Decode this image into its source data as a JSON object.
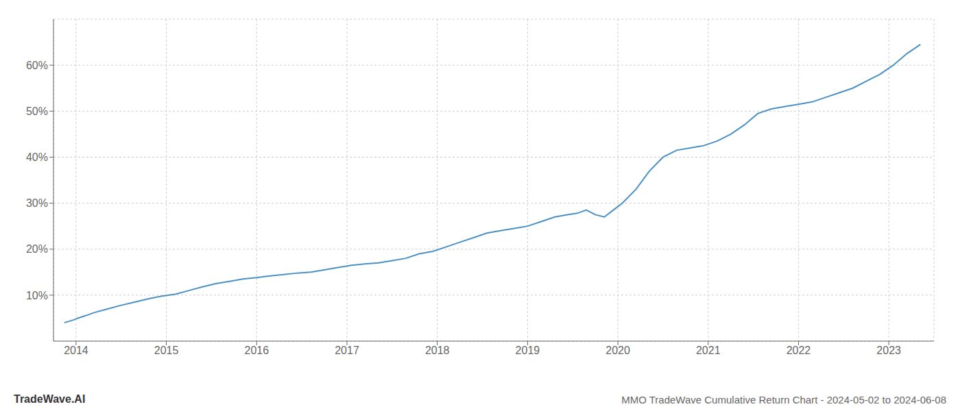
{
  "chart_data": {
    "type": "line",
    "title": "MMO TradeWave Cumulative Return Chart - 2024-05-02 to 2024-06-08",
    "annotations": [
      "TradeWave.AI"
    ],
    "color": "#4a90c4",
    "grid": true,
    "x": [
      2013.87,
      2013.92,
      2013.97,
      2014.02,
      2014.1,
      2014.2,
      2014.35,
      2014.5,
      2014.65,
      2014.8,
      2014.95,
      2015.1,
      2015.25,
      2015.4,
      2015.55,
      2015.7,
      2015.85,
      2016.0,
      2016.15,
      2016.3,
      2016.45,
      2016.6,
      2016.75,
      2016.9,
      2017.05,
      2017.2,
      2017.35,
      2017.5,
      2017.65,
      2017.8,
      2017.95,
      2018.1,
      2018.25,
      2018.4,
      2018.55,
      2018.7,
      2018.85,
      2019.0,
      2019.15,
      2019.3,
      2019.45,
      2019.55,
      2019.65,
      2019.75,
      2019.85,
      2019.95,
      2020.05,
      2020.2,
      2020.35,
      2020.5,
      2020.65,
      2020.8,
      2020.95,
      2021.1,
      2021.25,
      2021.4,
      2021.55,
      2021.7,
      2021.85,
      2022.0,
      2022.15,
      2022.3,
      2022.45,
      2022.6,
      2022.75,
      2022.9,
      2023.05,
      2023.2,
      2023.35
    ],
    "values": [
      4.0,
      4.3,
      4.6,
      5.0,
      5.5,
      6.2,
      7.0,
      7.8,
      8.5,
      9.2,
      9.8,
      10.2,
      11.0,
      11.8,
      12.5,
      13.0,
      13.5,
      13.8,
      14.2,
      14.5,
      14.8,
      15.0,
      15.5,
      16.0,
      16.5,
      16.8,
      17.0,
      17.5,
      18.0,
      19.0,
      19.5,
      20.5,
      21.5,
      22.5,
      23.5,
      24.0,
      24.5,
      25.0,
      26.0,
      27.0,
      27.5,
      27.8,
      28.5,
      27.5,
      27.0,
      28.5,
      30.0,
      33.0,
      37.0,
      40.0,
      41.5,
      42.0,
      42.5,
      43.5,
      45.0,
      47.0,
      49.5,
      50.5,
      51.0,
      51.5,
      52.0,
      53.0,
      54.0,
      55.0,
      56.5,
      58.0,
      60.0,
      62.5,
      64.5
    ],
    "xlim": [
      2013.75,
      2023.5
    ],
    "ylim": [
      0,
      70
    ],
    "xticks": [
      2014,
      2015,
      2016,
      2017,
      2018,
      2019,
      2020,
      2021,
      2022,
      2023
    ],
    "yticks": [
      {
        "value": 10,
        "label": "10%"
      },
      {
        "value": 20,
        "label": "20%"
      },
      {
        "value": 30,
        "label": "30%"
      },
      {
        "value": 40,
        "label": "40%"
      },
      {
        "value": 50,
        "label": "50%"
      },
      {
        "value": 60,
        "label": "60%"
      }
    ]
  }
}
